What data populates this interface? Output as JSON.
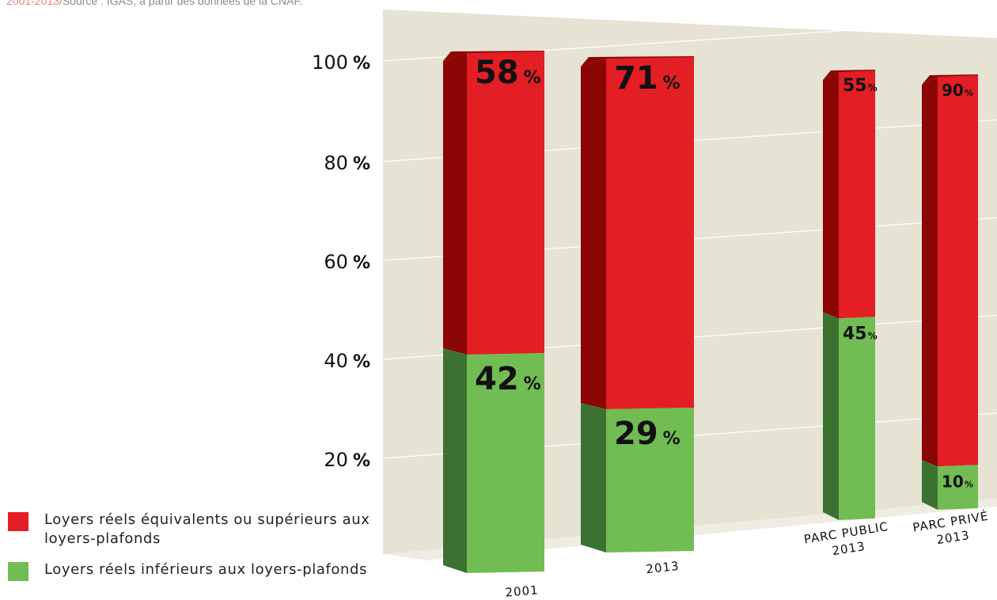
{
  "source": {
    "years": "2001-2013",
    "text": "/Source : IGAS, à partir des données de la CNAF."
  },
  "colors": {
    "red": "#e31e24",
    "red_dark": "#8b0505",
    "green": "#72bc54",
    "green_dark": "#3c7231",
    "panel": "#e6e3d4"
  },
  "legend": [
    {
      "label": "Loyers réels équivalents ou supérieurs aux loyers-plafonds",
      "color": "#e31e24"
    },
    {
      "label": "Loyers réels inférieurs aux loyers-plafonds",
      "color": "#72bc54"
    }
  ],
  "chart_data": {
    "type": "bar",
    "stacked": true,
    "yticks": [
      {
        "value": 20,
        "label": "20 %"
      },
      {
        "value": 40,
        "label": "40 %"
      },
      {
        "value": 60,
        "label": "60 %"
      },
      {
        "value": 80,
        "label": "80 %"
      },
      {
        "value": 100,
        "label": "100 %"
      }
    ],
    "categories": [
      "2001",
      "2013",
      "PARC PUBLIC 2013",
      "PARC PRIVÉ 2013"
    ],
    "series": [
      {
        "name": "Loyers réels inférieurs aux loyers-plafonds",
        "values": [
          42,
          29,
          45,
          10
        ],
        "labels": [
          "42 %",
          "29 %",
          "45%",
          "10%"
        ]
      },
      {
        "name": "Loyers réels équivalents ou supérieurs aux loyers-plafonds",
        "values": [
          58,
          71,
          55,
          90
        ],
        "labels": [
          "58 %",
          "71 %",
          "55%",
          "90%"
        ]
      }
    ],
    "ylim": [
      0,
      100
    ]
  }
}
